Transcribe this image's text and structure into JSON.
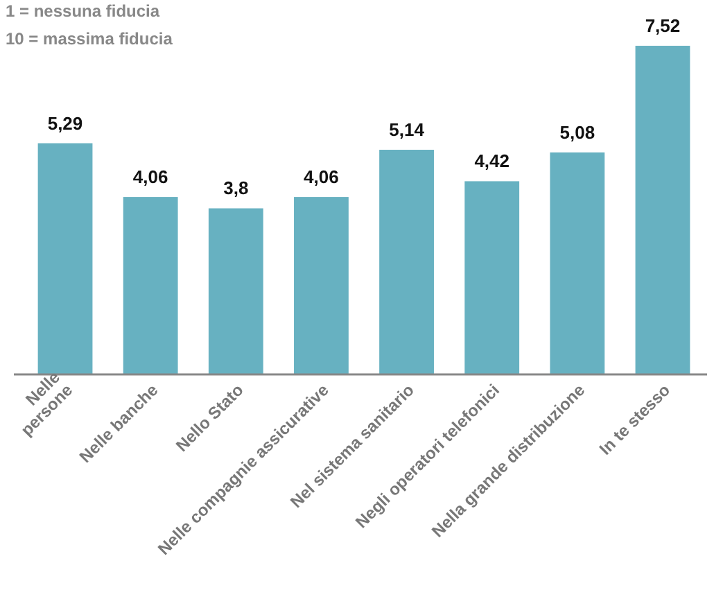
{
  "chart_data": {
    "type": "bar",
    "categories": [
      "Nelle persone",
      "Nelle banche",
      "Nello Stato",
      "Nelle compagnie assicurative",
      "Nel sistema sanitario",
      "Negli operatori telefonici",
      "Nella grande distribuzione",
      "In te stesso"
    ],
    "values": [
      5.29,
      4.06,
      3.8,
      4.06,
      5.14,
      4.42,
      5.08,
      7.52
    ],
    "value_labels": [
      "5,29",
      "4,06",
      "3,8",
      "4,06",
      "5,14",
      "4,42",
      "5,08",
      "7,52"
    ],
    "color": "#67b1c1",
    "tick_labels": "x",
    "annotations": [
      "1 = nessuna fiducia",
      "10 = massima fiducia"
    ]
  }
}
